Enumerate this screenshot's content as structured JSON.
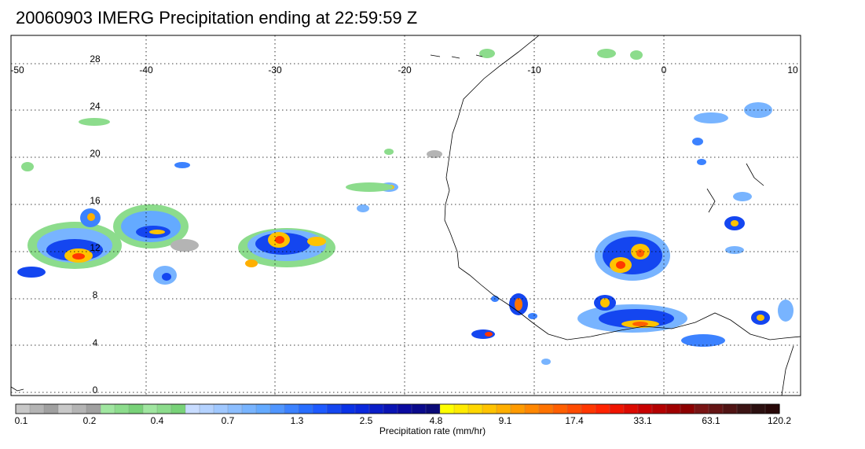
{
  "title": "20060903 IMERG Precipitation ending at 22:59:59 Z",
  "map": {
    "lon_range": [
      -50,
      10
    ],
    "lat_range": [
      -0.5,
      29.5
    ],
    "lon_ticks": [
      "-50",
      "-40",
      "-30",
      "-20",
      "-10",
      "0",
      "10"
    ],
    "lat_ticks": [
      "28",
      "24",
      "20",
      "16",
      "12",
      "8",
      "4",
      "0"
    ]
  },
  "colorbar": {
    "label": "Precipitation rate (mm/hr)",
    "tick_labels": [
      "0.1",
      "0.2",
      "0.4",
      "0.7",
      "1.3",
      "2.5",
      "4.8",
      "9.1",
      "17.4",
      "33.1",
      "63.1",
      "120.2"
    ],
    "colors": [
      "#c8c8c8",
      "#b4b4b4",
      "#a0a0a0",
      "#c8c8c8",
      "#b4b4b4",
      "#a0a0a0",
      "#a0e6a0",
      "#8cdc8c",
      "#78d278",
      "#a0e6a0",
      "#8cdc8c",
      "#78d278",
      "#c8dcff",
      "#b4d2ff",
      "#a0c8ff",
      "#8cbeff",
      "#78b4ff",
      "#64aaff",
      "#5096ff",
      "#3c82ff",
      "#286eff",
      "#1e5aff",
      "#1446f0",
      "#0a32e6",
      "#0a28dc",
      "#0a1ec8",
      "#0a14b4",
      "#0a0aa0",
      "#0a0a8c",
      "#0a0a78",
      "#ffff00",
      "#ffeb00",
      "#ffd700",
      "#ffc300",
      "#ffaf00",
      "#ff9b00",
      "#ff8700",
      "#ff7300",
      "#ff5f00",
      "#ff4b00",
      "#ff3700",
      "#ff2300",
      "#f01400",
      "#dc0a00",
      "#c80000",
      "#b40000",
      "#a00000",
      "#8c0000",
      "#781414",
      "#641414",
      "#501414",
      "#3c1414",
      "#2c1010",
      "#280808"
    ]
  }
}
